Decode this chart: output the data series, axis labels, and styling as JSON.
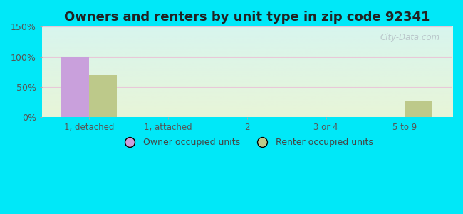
{
  "title": "Owners and renters by unit type in zip code 92341",
  "categories": [
    "1, detached",
    "1, attached",
    "2",
    "3 or 4",
    "5 to 9"
  ],
  "owner_values": [
    100,
    0,
    0,
    0,
    0
  ],
  "renter_values": [
    70,
    0,
    0,
    0,
    28
  ],
  "owner_color": "#c9a0dc",
  "renter_color": "#bdc98a",
  "owner_label": "Owner occupied units",
  "renter_label": "Renter occupied units",
  "ylim": [
    0,
    150
  ],
  "yticks": [
    0,
    50,
    100,
    150
  ],
  "ytick_labels": [
    "0%",
    "50%",
    "100%",
    "150%"
  ],
  "bg_top": "#d8f5ee",
  "bg_bottom": "#e8f5d8",
  "outer_bg": "#00e8f8",
  "title_fontsize": 13,
  "watermark": "City-Data.com",
  "grid_color": "#e8c8d8",
  "tick_color": "#555555"
}
